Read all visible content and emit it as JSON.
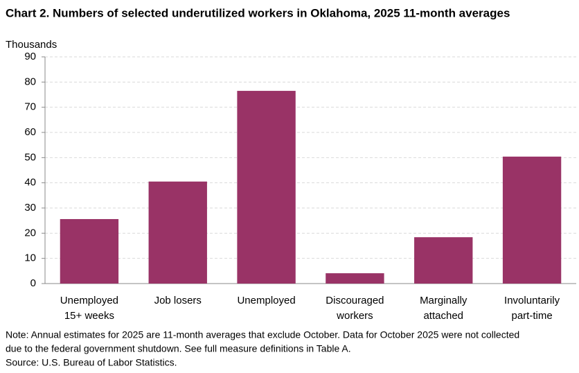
{
  "chart_data": {
    "type": "bar",
    "title": "Chart 2. Numbers of selected underutilized workers in Oklahoma, 2025 11-month averages",
    "y_label": "Thousands",
    "categories": [
      [
        "Unemployed",
        "15+ weeks"
      ],
      [
        "Job losers"
      ],
      [
        "Unemployed"
      ],
      [
        "Discouraged",
        "workers"
      ],
      [
        "Marginally",
        "attached"
      ],
      [
        "Involuntarily",
        "part-time"
      ]
    ],
    "values": [
      25.6,
      40.5,
      76.5,
      4.1,
      18.4,
      50.4
    ],
    "color": "#993366",
    "ylim": [
      0,
      90
    ],
    "yticks": [
      0,
      10,
      20,
      30,
      40,
      50,
      60,
      70,
      80,
      90
    ],
    "grid": true,
    "note": [
      "Note: Annual estimates for 2025 are 11-month averages that exclude October. Data for October 2025 were not collected",
      "due to the federal government shutdown. See full measure definitions in Table A."
    ],
    "source": "Source: U.S. Bureau of Labor Statistics."
  }
}
